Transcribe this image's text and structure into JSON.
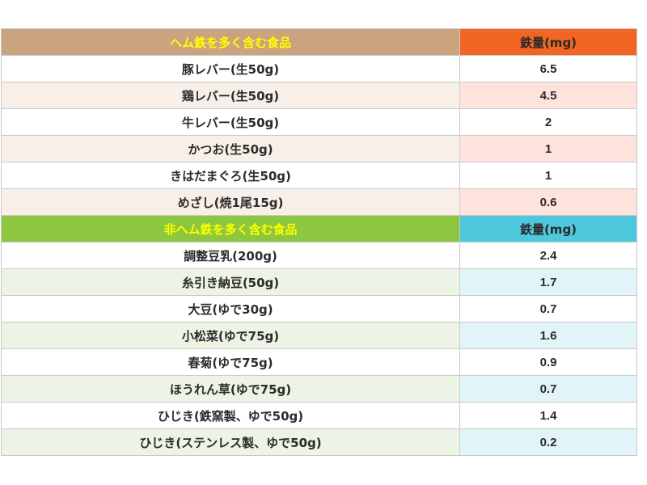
{
  "heme": {
    "header": {
      "name": "ヘム鉄を多く含む食品",
      "value": "鉄量(mg)"
    },
    "rows": [
      {
        "name": "豚レバー(生50g)",
        "value": "6.5"
      },
      {
        "name": "鶏レバー(生50g)",
        "value": "4.5"
      },
      {
        "name": "牛レバー(生50g)",
        "value": "2"
      },
      {
        "name": "かつお(生50g)",
        "value": "1"
      },
      {
        "name": "きはだまぐろ(生50g)",
        "value": "1"
      },
      {
        "name": "めざし(焼1尾15g)",
        "value": "0.6"
      }
    ]
  },
  "nonheme": {
    "header": {
      "name": "非ヘム鉄を多く含む食品",
      "value": "鉄量(mg)"
    },
    "rows": [
      {
        "name": "調整豆乳(200g)",
        "value": "2.4"
      },
      {
        "name": "糸引き納豆(50g)",
        "value": "1.7"
      },
      {
        "name": "大豆(ゆで30g)",
        "value": "0.7"
      },
      {
        "name": "小松菜(ゆで75g)",
        "value": "1.6"
      },
      {
        "name": "春菊(ゆで75g)",
        "value": "0.9"
      },
      {
        "name": "ほうれん草(ゆで75g)",
        "value": "0.7"
      },
      {
        "name": "ひじき(鉄窯製、ゆで50g)",
        "value": "1.4"
      },
      {
        "name": "ひじき(ステンレス製、ゆで50g)",
        "value": "0.2"
      }
    ]
  },
  "colors": {
    "heme_header_name_bg": "#c9a47e",
    "heme_header_value_bg": "#f26522",
    "nonheme_header_name_bg": "#8dc63f",
    "nonheme_header_value_bg": "#4ec8dc",
    "header_text": "#ffff00"
  }
}
